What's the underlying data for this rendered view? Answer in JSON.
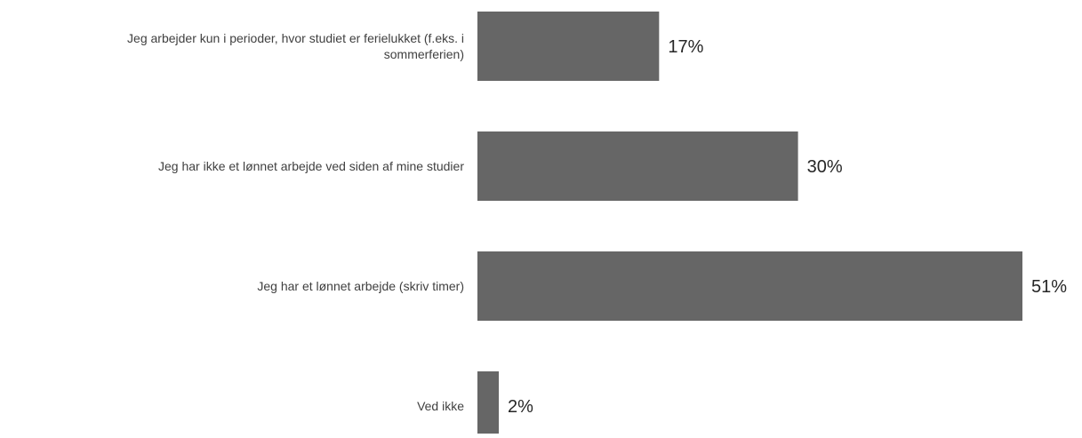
{
  "chart_data": {
    "type": "bar",
    "orientation": "horizontal",
    "title": "",
    "xlabel": "",
    "ylabel": "",
    "grid": false,
    "legend": "none",
    "xlim": [
      0,
      51
    ],
    "categories": [
      [
        "Jeg arbejder kun i perioder, hvor studiet er ferielukket (f.eks. i",
        "sommerferien)"
      ],
      [
        "Jeg har ikke et lønnet arbejde ved siden af mine studier"
      ],
      [
        "Jeg har et lønnet arbejde (skriv timer)"
      ],
      [
        "Ved ikke"
      ]
    ],
    "values": [
      17,
      30,
      51,
      2
    ],
    "value_labels": [
      "17%",
      "30%",
      "51%",
      "2%"
    ],
    "colors": {
      "bar": "#666666",
      "label_text": "#404040",
      "value_text": "#262626"
    }
  }
}
